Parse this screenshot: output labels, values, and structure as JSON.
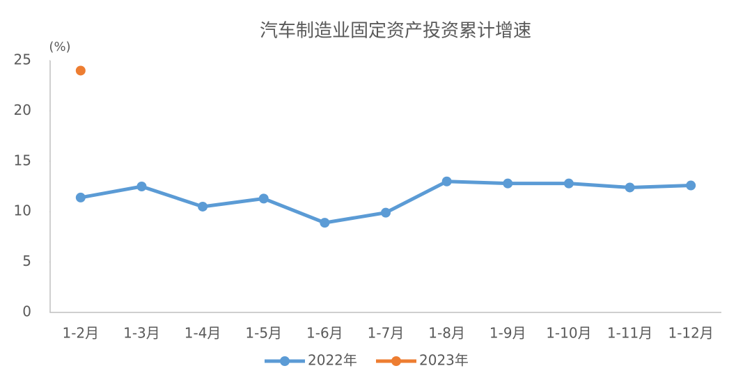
{
  "chart_data": {
    "type": "line",
    "title": "汽车制造业固定资产投资累计增速",
    "y_label": "(%)",
    "categories": [
      "1-2月",
      "1-3月",
      "1-4月",
      "1-5月",
      "1-6月",
      "1-7月",
      "1-8月",
      "1-9月",
      "1-10月",
      "1-11月",
      "1-12月"
    ],
    "series": [
      {
        "name": "2022年",
        "color": "#5b9bd5",
        "values": [
          11.4,
          12.5,
          10.5,
          11.3,
          8.9,
          9.9,
          13.0,
          12.8,
          12.8,
          12.4,
          12.6
        ]
      },
      {
        "name": "2023年",
        "color": "#ed7d31",
        "values": [
          24.0,
          null,
          null,
          null,
          null,
          null,
          null,
          null,
          null,
          null,
          null
        ]
      }
    ],
    "ylim": [
      0,
      25
    ],
    "yticks": [
      0,
      5,
      10,
      15,
      20,
      25
    ],
    "grid": false,
    "legend": "bottom"
  }
}
